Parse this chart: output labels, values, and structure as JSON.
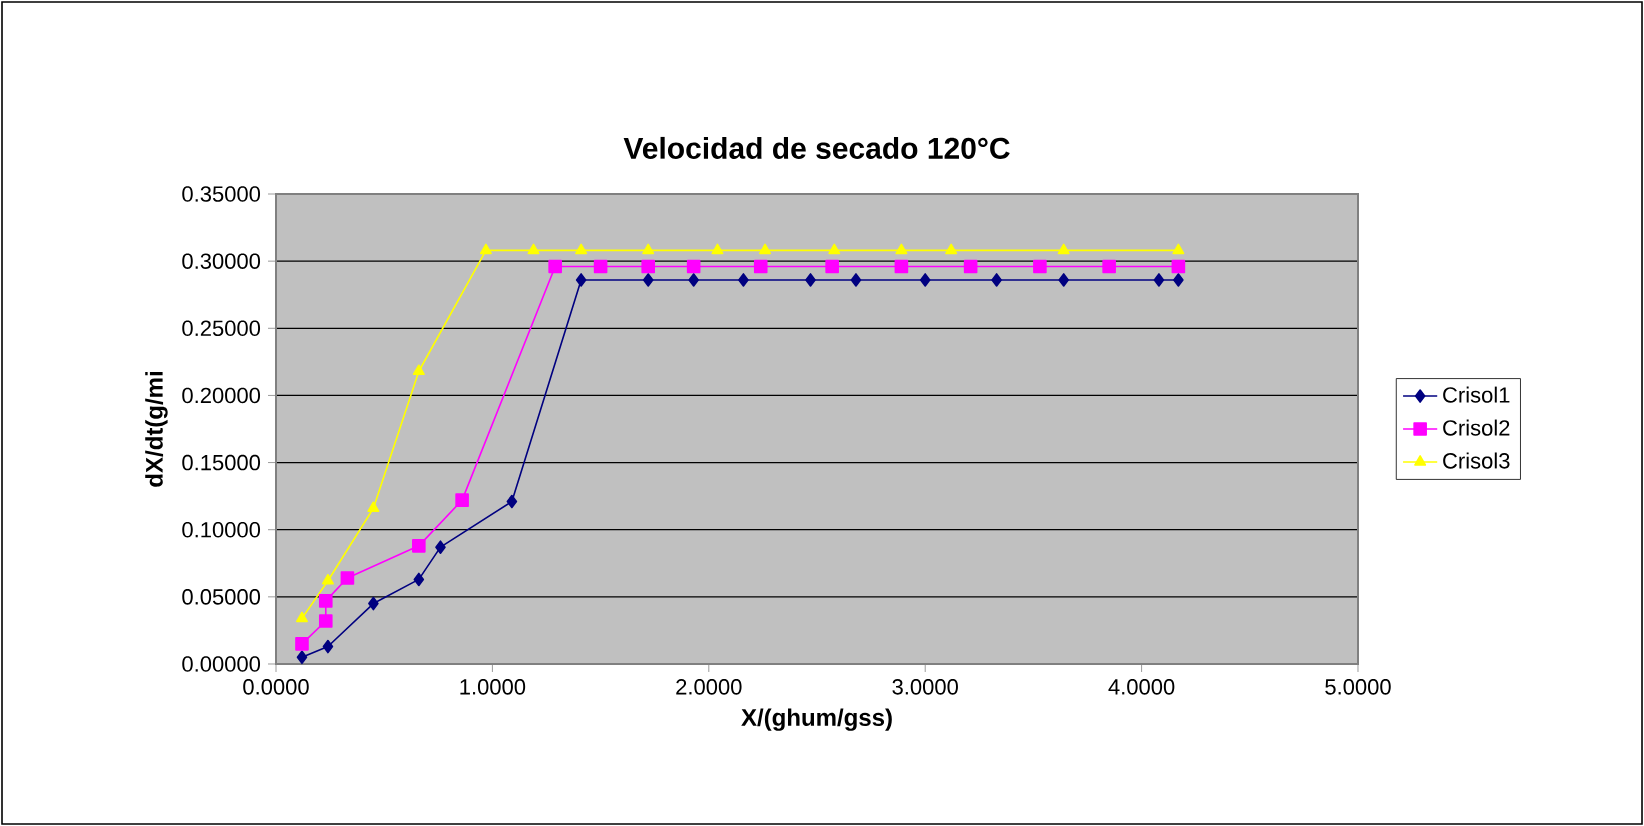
{
  "chart_data": {
    "type": "line",
    "title": "Velocidad de secado 120°C",
    "xlabel": "X/(ghum/gss)",
    "ylabel": "dX/dt(g/mi",
    "xlim": [
      0,
      5
    ],
    "ylim": [
      0,
      0.35
    ],
    "xticks": [
      {
        "value": 0,
        "label": "0.0000"
      },
      {
        "value": 1,
        "label": "1.0000"
      },
      {
        "value": 2,
        "label": "2.0000"
      },
      {
        "value": 3,
        "label": "3.0000"
      },
      {
        "value": 4,
        "label": "4.0000"
      },
      {
        "value": 5,
        "label": "5.0000"
      }
    ],
    "yticks": [
      {
        "value": 0,
        "label": "0.00000"
      },
      {
        "value": 0.05,
        "label": "0.05000"
      },
      {
        "value": 0.1,
        "label": "0.10000"
      },
      {
        "value": 0.15,
        "label": "0.15000"
      },
      {
        "value": 0.2,
        "label": "0.20000"
      },
      {
        "value": 0.25,
        "label": "0.25000"
      },
      {
        "value": 0.3,
        "label": "0.30000"
      },
      {
        "value": 0.35,
        "label": "0.35000"
      }
    ],
    "grid": "y",
    "legend": "right",
    "series": [
      {
        "name": "Crisol1",
        "color": "#000080",
        "marker": "diamond",
        "x": [
          0.12,
          0.24,
          0.45,
          0.66,
          0.76,
          1.09,
          1.41,
          1.72,
          1.93,
          2.16,
          2.47,
          2.68,
          3.0,
          3.33,
          3.64,
          4.08,
          4.17
        ],
        "values": [
          0.005,
          0.013,
          0.045,
          0.063,
          0.087,
          0.121,
          0.286,
          0.286,
          0.286,
          0.286,
          0.286,
          0.286,
          0.286,
          0.286,
          0.286,
          0.286,
          0.286
        ]
      },
      {
        "name": "Crisol2",
        "color": "#ff00ff",
        "marker": "square",
        "x": [
          0.12,
          0.23,
          0.23,
          0.33,
          0.66,
          0.86,
          1.29,
          1.5,
          1.72,
          1.93,
          2.24,
          2.57,
          2.89,
          3.21,
          3.53,
          3.85,
          4.17
        ],
        "values": [
          0.015,
          0.032,
          0.047,
          0.064,
          0.088,
          0.122,
          0.296,
          0.296,
          0.296,
          0.296,
          0.296,
          0.296,
          0.296,
          0.296,
          0.296,
          0.296,
          0.296
        ]
      },
      {
        "name": "Crisol3",
        "color": "#ffff00",
        "marker": "triangle",
        "x": [
          0.12,
          0.24,
          0.45,
          0.66,
          0.97,
          1.19,
          1.41,
          1.72,
          2.04,
          2.26,
          2.58,
          2.89,
          3.12,
          3.64,
          4.17
        ],
        "values": [
          0.034,
          0.062,
          0.116,
          0.218,
          0.308,
          0.308,
          0.308,
          0.308,
          0.308,
          0.308,
          0.308,
          0.308,
          0.308,
          0.308,
          0.308
        ]
      }
    ]
  }
}
